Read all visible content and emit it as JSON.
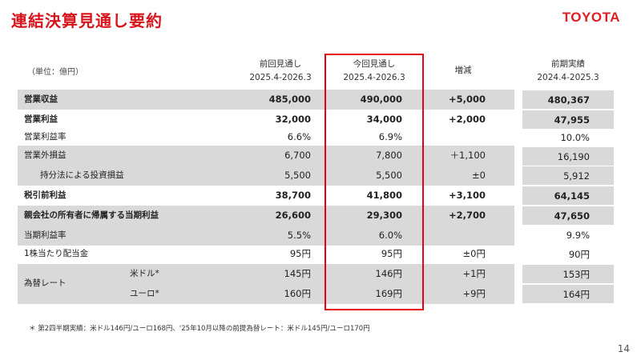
{
  "header": {
    "title": "連結決算見通し要約",
    "logo": "TOYOTA"
  },
  "table": {
    "unit_label": "（単位：億円）",
    "columns": [
      {
        "line1": "前回見通し",
        "line2": "2025.4-2026.3"
      },
      {
        "line1": "今回見通し",
        "line2": "2025.4-2026.3"
      },
      {
        "line1": "増減",
        "line2": ""
      }
    ],
    "rows": [
      {
        "label": "営業収益",
        "prev": "485,000",
        "curr": "490,000",
        "diff": "+5,000",
        "bold": true,
        "shade": true
      },
      {
        "label": "営業利益",
        "prev": "32,000",
        "curr": "34,000",
        "diff": "+2,000",
        "bold": true,
        "shade": false
      },
      {
        "label": "営業利益率",
        "prev": "6.6%",
        "curr": "6.9%",
        "diff": "",
        "bold": false,
        "shade": false
      },
      {
        "label": "営業外損益",
        "prev": "6,700",
        "curr": "7,800",
        "diff": "＋1,100",
        "bold": false,
        "shade": true
      },
      {
        "label": "持分法による投資損益",
        "prev": "5,500",
        "curr": "5,500",
        "diff": "±0",
        "bold": false,
        "shade": true
      },
      {
        "label": "税引前利益",
        "prev": "38,700",
        "curr": "41,800",
        "diff": "+3,100",
        "bold": true,
        "shade": false
      },
      {
        "label": "親会社の所有者に帰属する当期利益",
        "prev": "26,600",
        "curr": "29,300",
        "diff": "+2,700",
        "bold": true,
        "shade": true
      },
      {
        "label": "当期利益率",
        "prev": "5.5%",
        "curr": "6.0%",
        "diff": "",
        "bold": false,
        "shade": true
      },
      {
        "label": "1株当たり配当金",
        "prev": "95円",
        "curr": "95円",
        "diff": "±0円",
        "bold": false,
        "shade": false
      }
    ],
    "fx": {
      "label": "為替レート",
      "usd": {
        "label": "米ドル*",
        "prev": "145円",
        "curr": "146円",
        "diff": "+1円"
      },
      "eur": {
        "label": "ユーロ*",
        "prev": "160円",
        "curr": "169円",
        "diff": "+9円"
      }
    }
  },
  "previous_results": {
    "line1": "前期実績",
    "line2": "2024.4-2025.3",
    "values": [
      "480,367",
      "47,955",
      "10.0%",
      "16,190",
      "5,912",
      "64,145",
      "47,650",
      "9.9%",
      "90円",
      "153円",
      "164円"
    ]
  },
  "footnote": "＊ 第2四半期実績：米ドル146円/ユーロ168円、'25年10月以降の前提為替レート：米ドル145円/ユーロ170円",
  "page_number": "14"
}
